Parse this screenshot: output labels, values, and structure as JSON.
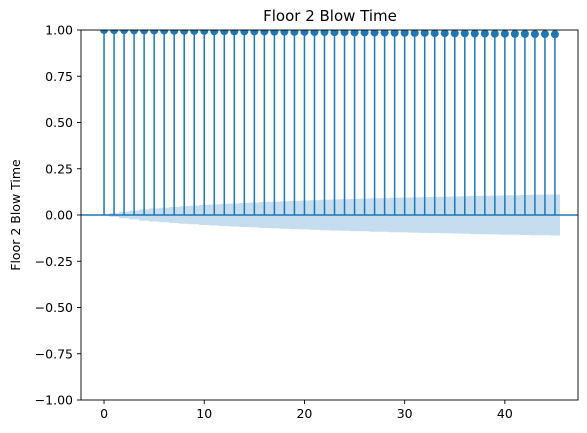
{
  "chart_data": {
    "type": "stem",
    "title": "Floor 2 Blow Time",
    "xlabel": "",
    "ylabel": "Floor 2 Blow Time",
    "xlim": [
      -2.3,
      47.3
    ],
    "ylim": [
      -1.0,
      1.0
    ],
    "x_ticks": [
      0,
      10,
      20,
      30,
      40
    ],
    "x_tick_labels": [
      "0",
      "10",
      "20",
      "30",
      "40"
    ],
    "y_ticks": [
      -1.0,
      -0.75,
      -0.5,
      -0.25,
      0.0,
      0.25,
      0.5,
      0.75,
      1.0
    ],
    "y_tick_labels": [
      "−1.00",
      "−0.75",
      "−0.50",
      "−0.25",
      "0.00",
      "0.25",
      "0.50",
      "0.75",
      "1.00"
    ],
    "lags": [
      0,
      1,
      2,
      3,
      4,
      5,
      6,
      7,
      8,
      9,
      10,
      11,
      12,
      13,
      14,
      15,
      16,
      17,
      18,
      19,
      20,
      21,
      22,
      23,
      24,
      25,
      26,
      27,
      28,
      29,
      30,
      31,
      32,
      33,
      34,
      35,
      36,
      37,
      38,
      39,
      40,
      41,
      42,
      43,
      44,
      45
    ],
    "acf": [
      1.0,
      0.999,
      0.999,
      0.998,
      0.998,
      0.997,
      0.997,
      0.996,
      0.996,
      0.995,
      0.995,
      0.994,
      0.994,
      0.993,
      0.993,
      0.992,
      0.992,
      0.991,
      0.991,
      0.99,
      0.99,
      0.989,
      0.989,
      0.988,
      0.988,
      0.987,
      0.987,
      0.986,
      0.986,
      0.985,
      0.985,
      0.984,
      0.984,
      0.983,
      0.983,
      0.982,
      0.982,
      0.981,
      0.981,
      0.98,
      0.98,
      0.979,
      0.979,
      0.978,
      0.978,
      0.977
    ],
    "confidence_band": {
      "lags": [
        0,
        1,
        2,
        3,
        4,
        5,
        6,
        7,
        8,
        9,
        10,
        11,
        12,
        13,
        14,
        15,
        16,
        17,
        18,
        19,
        20,
        21,
        22,
        23,
        24,
        25,
        26,
        27,
        28,
        29,
        30,
        31,
        32,
        33,
        34,
        35,
        36,
        37,
        38,
        39,
        40,
        41,
        42,
        43,
        44,
        45
      ],
      "upper": [
        0.0,
        0.01,
        0.018,
        0.024,
        0.03,
        0.035,
        0.039,
        0.043,
        0.047,
        0.05,
        0.054,
        0.057,
        0.06,
        0.062,
        0.065,
        0.067,
        0.07,
        0.072,
        0.074,
        0.076,
        0.078,
        0.08,
        0.082,
        0.084,
        0.085,
        0.087,
        0.088,
        0.09,
        0.091,
        0.093,
        0.094,
        0.095,
        0.097,
        0.098,
        0.099,
        0.1,
        0.101,
        0.103,
        0.104,
        0.105,
        0.106,
        0.107,
        0.108,
        0.109,
        0.11,
        0.111
      ]
    },
    "colors": {
      "stem": "#1f77b4",
      "band": "#c6dcef",
      "axis": "#000000"
    },
    "grid": false
  }
}
